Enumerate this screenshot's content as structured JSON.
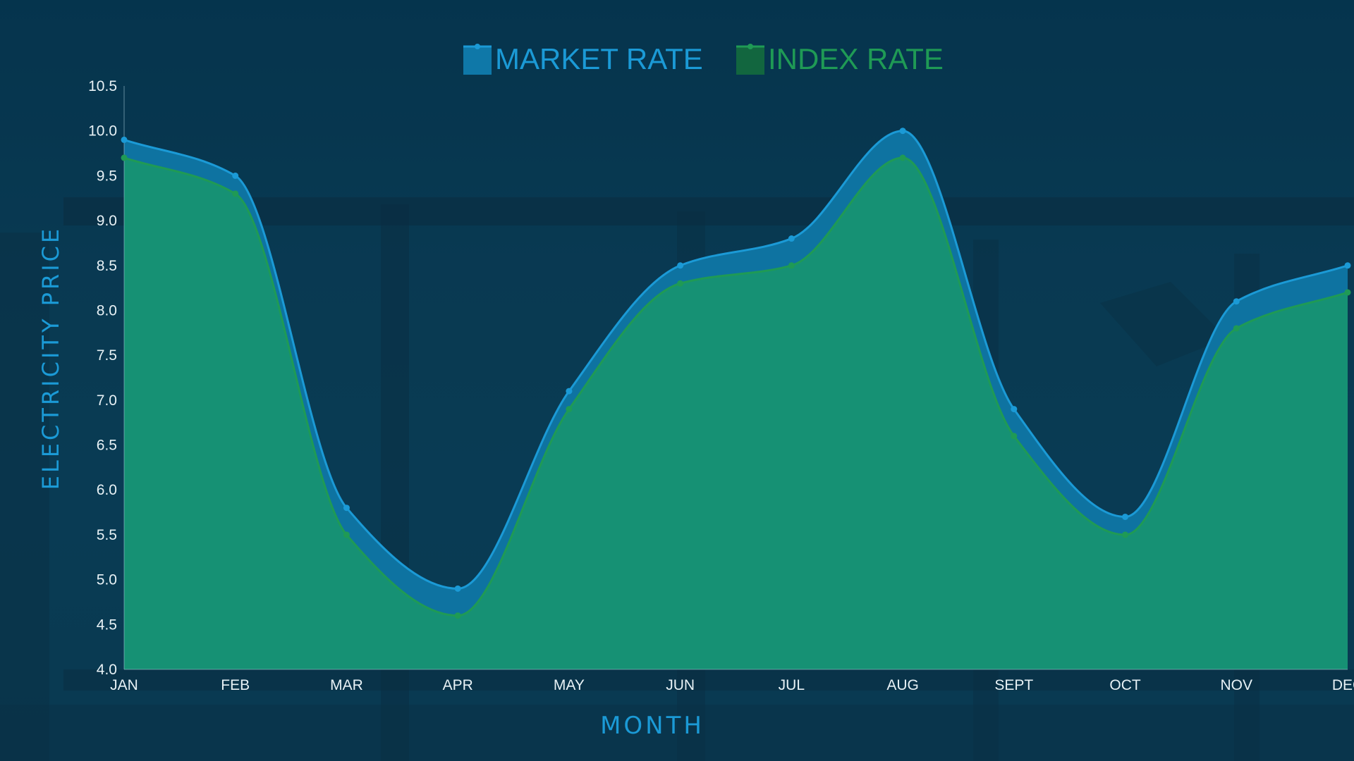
{
  "chart_data": {
    "type": "area",
    "title": "",
    "xlabel": "MONTH",
    "ylabel": "ELECTRICITY PRICE",
    "categories": [
      "JAN",
      "FEB",
      "MAR",
      "APR",
      "MAY",
      "JUN",
      "JUL",
      "AUG",
      "SEPT",
      "OCT",
      "NOV",
      "DEC"
    ],
    "ylim": [
      4.0,
      10.5
    ],
    "yticks": [
      "4.0",
      "4.5",
      "5.0",
      "5.5",
      "6.0",
      "6.5",
      "7.0",
      "7.5",
      "8.0",
      "8.5",
      "9.0",
      "9.5",
      "10.0",
      "10.5"
    ],
    "grid": false,
    "legend_position": "top-center",
    "series": [
      {
        "name": "MARKET RATE",
        "color": "#1b9ad6",
        "values": [
          9.9,
          9.5,
          5.8,
          4.9,
          7.1,
          8.5,
          8.8,
          10.0,
          6.9,
          5.7,
          8.1,
          8.5
        ]
      },
      {
        "name": "INDEX RATE",
        "color": "#1f9a55",
        "values": [
          9.7,
          9.3,
          5.5,
          4.6,
          6.9,
          8.3,
          8.5,
          9.7,
          6.6,
          5.5,
          7.8,
          8.2
        ]
      }
    ]
  },
  "colors": {
    "axis_title": "#1b9ad6",
    "market_fill": "#0f78a8",
    "index_fill": "#179272"
  }
}
